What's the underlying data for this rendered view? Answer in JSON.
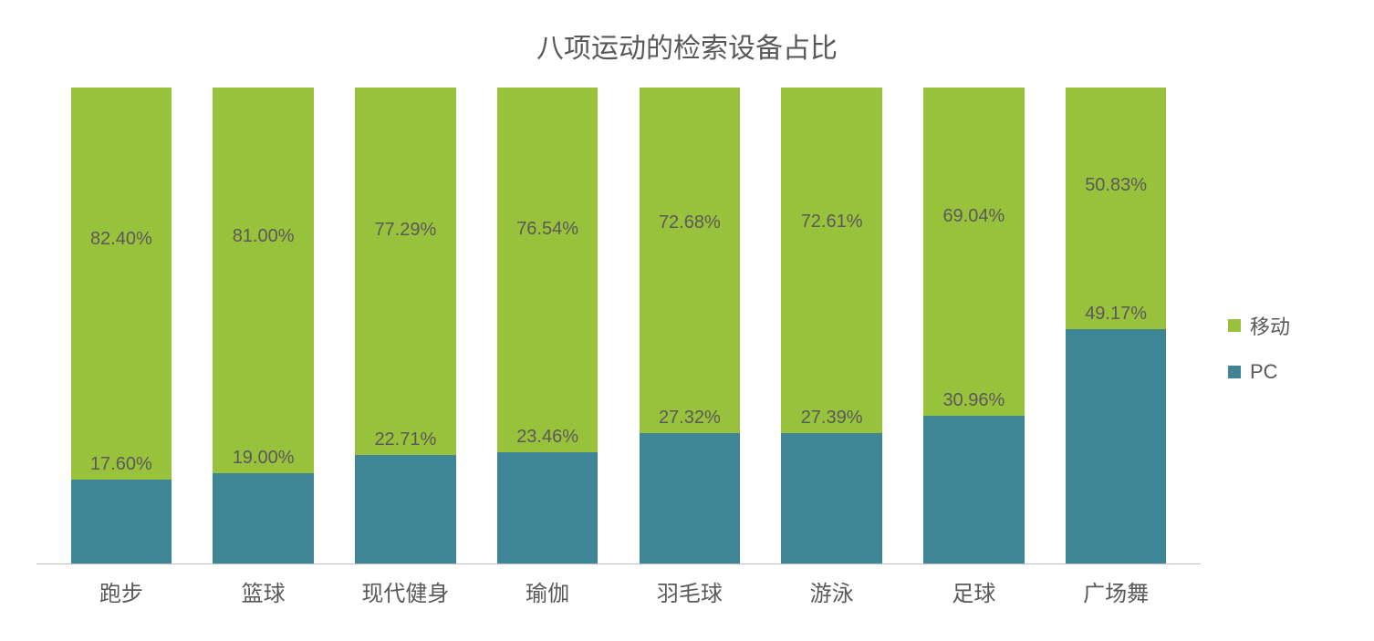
{
  "chart": {
    "type": "stacked-bar",
    "title": "八项运动的检索设备占比",
    "title_fontsize": 30,
    "title_color": "#595959",
    "background_color": "#ffffff",
    "axis_color": "#bfbfbf",
    "label_fontsize": 20,
    "label_color": "#595959",
    "xlabel_fontsize": 24,
    "xlabel_color": "#595959",
    "bar_width_ratio": 0.74,
    "ylim": [
      0,
      100
    ],
    "categories": [
      "跑步",
      "篮球",
      "现代健身",
      "瑜伽",
      "羽毛球",
      "游泳",
      "足球",
      "广场舞"
    ],
    "series": [
      {
        "name": "PC",
        "color": "#3e8696",
        "values": [
          17.6,
          19.0,
          22.71,
          23.46,
          27.32,
          27.39,
          30.96,
          49.17
        ],
        "labels": [
          "17.60%",
          "19.00%",
          "22.71%",
          "23.46%",
          "27.32%",
          "27.39%",
          "30.96%",
          "49.17%"
        ]
      },
      {
        "name": "移动",
        "color": "#99c23c",
        "values": [
          82.4,
          81.0,
          77.29,
          76.54,
          72.68,
          72.61,
          69.04,
          50.83
        ],
        "labels": [
          "82.40%",
          "81.00%",
          "77.29%",
          "76.54%",
          "72.68%",
          "72.61%",
          "69.04%",
          "50.83%"
        ]
      }
    ],
    "legend": {
      "position": "right",
      "fontsize": 22,
      "color": "#595959",
      "swatch_size": 14,
      "items": [
        {
          "label": "移动",
          "color": "#99c23c"
        },
        {
          "label": "PC",
          "color": "#3e8696"
        }
      ]
    }
  }
}
